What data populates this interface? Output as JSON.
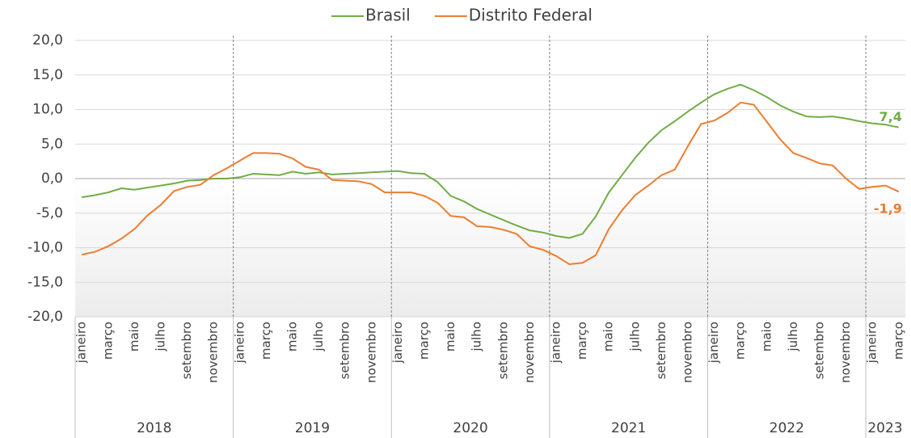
{
  "chart_data": {
    "type": "line",
    "categories": [
      "janeiro",
      null,
      "março",
      null,
      "maio",
      null,
      "julho",
      null,
      "setembro",
      null,
      "novembro",
      null,
      "janeiro",
      null,
      "março",
      null,
      "maio",
      null,
      "julho",
      null,
      "setembro",
      null,
      "novembro",
      null,
      "janeiro",
      null,
      "março",
      null,
      "maio",
      null,
      "julho",
      null,
      "setembro",
      null,
      "novembro",
      null,
      "janeiro",
      null,
      "março",
      null,
      "maio",
      null,
      "julho",
      null,
      "setembro",
      null,
      "novembro",
      null,
      "janeiro",
      null,
      "março",
      null,
      "maio",
      null,
      "julho",
      null,
      "setembro",
      null,
      "novembro",
      null,
      "janeiro",
      null,
      "março"
    ],
    "years": [
      "2018",
      "2019",
      "2020",
      "2021",
      "2022",
      "2023"
    ],
    "series": [
      {
        "name": "Brasil",
        "color": "#70ad47",
        "values": [
          -2.7,
          -2.4,
          -2.0,
          -1.4,
          -1.6,
          -1.3,
          -1.0,
          -0.7,
          -0.3,
          -0.2,
          0.0,
          0.0,
          0.2,
          0.7,
          0.6,
          0.5,
          1.0,
          0.7,
          0.9,
          0.6,
          0.7,
          0.8,
          0.9,
          1.0,
          1.1,
          0.8,
          0.7,
          -0.5,
          -2.5,
          -3.3,
          -4.4,
          -5.2,
          -6.0,
          -6.8,
          -7.5,
          -7.8,
          -8.3,
          -8.6,
          -8.0,
          -5.5,
          -2.0,
          0.5,
          3.0,
          5.2,
          7.0,
          8.3,
          9.7,
          11.0,
          12.2,
          13.0,
          13.6,
          12.8,
          11.8,
          10.6,
          9.7,
          9.0,
          8.9,
          9.0,
          8.7,
          8.3,
          8.0,
          7.8,
          7.4
        ],
        "value_labels": [
          null,
          null,
          null,
          null,
          null,
          null,
          null,
          null,
          null,
          null,
          null,
          null,
          null,
          null,
          null,
          null,
          null,
          null,
          null,
          null,
          null,
          null,
          null,
          null,
          null,
          null,
          null,
          null,
          null,
          null,
          null,
          null,
          null,
          null,
          null,
          null,
          null,
          null,
          null,
          null,
          null,
          null,
          null,
          null,
          null,
          null,
          null,
          null,
          null,
          null,
          null,
          null,
          null,
          null,
          null,
          null,
          null,
          null,
          null,
          null,
          null,
          null,
          "7,4"
        ]
      },
      {
        "name": "Distrito Federal",
        "color": "#ed7d31",
        "values": [
          -11.0,
          -10.6,
          -9.8,
          -8.7,
          -7.3,
          -5.3,
          -3.8,
          -1.8,
          -1.2,
          -0.9,
          0.5,
          1.5,
          2.6,
          3.7,
          3.7,
          3.6,
          2.9,
          1.7,
          1.3,
          -0.2,
          -0.3,
          -0.4,
          -0.8,
          -2.0,
          -2.0,
          -2.0,
          -2.5,
          -3.5,
          -5.4,
          -5.6,
          -6.9,
          -7.0,
          -7.4,
          -8.0,
          -9.8,
          -10.3,
          -11.2,
          -12.4,
          -12.2,
          -11.1,
          -7.3,
          -4.6,
          -2.4,
          -1.0,
          0.5,
          1.3,
          4.7,
          7.9,
          8.4,
          9.5,
          11.0,
          10.7,
          8.2,
          5.7,
          3.7,
          3.0,
          2.2,
          1.9,
          0.0,
          -1.5,
          -1.2,
          -1.0,
          -1.9
        ],
        "value_labels": [
          null,
          null,
          null,
          null,
          null,
          null,
          null,
          null,
          null,
          null,
          null,
          null,
          null,
          null,
          null,
          null,
          null,
          null,
          null,
          null,
          null,
          null,
          null,
          null,
          null,
          null,
          null,
          null,
          null,
          null,
          null,
          null,
          null,
          null,
          null,
          null,
          null,
          null,
          null,
          null,
          null,
          null,
          null,
          null,
          null,
          null,
          null,
          null,
          null,
          null,
          null,
          null,
          null,
          null,
          null,
          null,
          null,
          null,
          null,
          null,
          null,
          null,
          "-1,9"
        ]
      }
    ],
    "ylim": [
      -20,
      20
    ],
    "yticks": [
      {
        "value": -20,
        "label": "-20,0"
      },
      {
        "value": -15,
        "label": "-15,0"
      },
      {
        "value": -10,
        "label": "-10,0"
      },
      {
        "value": -5,
        "label": "-5,0"
      },
      {
        "value": 0,
        "label": "0,0"
      },
      {
        "value": 5,
        "label": "5,0"
      },
      {
        "value": 10,
        "label": "10,0"
      },
      {
        "value": 15,
        "label": "15,0"
      },
      {
        "value": 20,
        "label": "20,0"
      }
    ],
    "grid": true,
    "legend": "top"
  }
}
